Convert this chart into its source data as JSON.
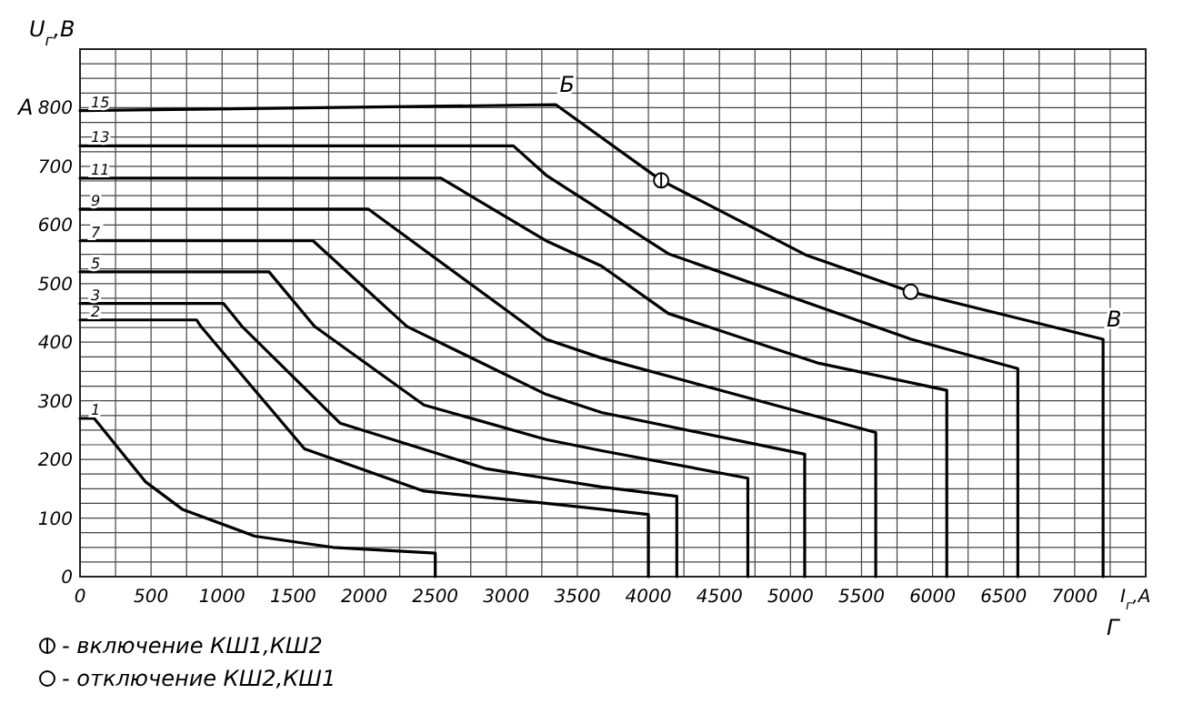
{
  "chart_data": {
    "type": "line",
    "xlabel": "I$_{г}$,А",
    "ylabel": "U$_{г}$,В",
    "xlim": [
      0,
      7500
    ],
    "ylim": [
      0,
      900
    ],
    "xticks": [
      0,
      {
        "value": 250,
        "label": null
      },
      500,
      {
        "value": 750,
        "label": null
      },
      1000,
      {
        "value": 1250,
        "label": null
      },
      1500,
      {
        "value": 1750,
        "label": null
      },
      2000,
      {
        "value": 2250,
        "label": null
      },
      2500,
      {
        "value": 2750,
        "label": null
      },
      3000,
      {
        "value": 3250,
        "label": null
      },
      3500,
      {
        "value": 3750,
        "label": null
      },
      4000,
      {
        "value": 4250,
        "label": null
      },
      4500,
      {
        "value": 4750,
        "label": null
      },
      5000,
      {
        "value": 5250,
        "label": null
      },
      5500,
      {
        "value": 5750,
        "label": null
      },
      6000,
      {
        "value": 6250,
        "label": null
      },
      6500,
      {
        "value": 6750,
        "label": null
      },
      7000,
      {
        "value": 7250,
        "label": null
      },
      {
        "value": 7500,
        "label": null
      }
    ],
    "yticks": [
      0,
      {
        "value": 25,
        "label": null
      },
      {
        "value": 50,
        "label": null
      },
      {
        "value": 75,
        "label": null
      },
      100,
      {
        "value": 125,
        "label": null
      },
      {
        "value": 150,
        "label": null
      },
      {
        "value": 175,
        "label": null
      },
      200,
      {
        "value": 225,
        "label": null
      },
      {
        "value": 250,
        "label": null
      },
      {
        "value": 275,
        "label": null
      },
      300,
      {
        "value": 325,
        "label": null
      },
      {
        "value": 350,
        "label": null
      },
      {
        "value": 375,
        "label": null
      },
      400,
      {
        "value": 425,
        "label": null
      },
      {
        "value": 450,
        "label": null
      },
      {
        "value": 475,
        "label": null
      },
      500,
      {
        "value": 525,
        "label": null
      },
      {
        "value": 550,
        "label": null
      },
      {
        "value": 575,
        "label": null
      },
      600,
      {
        "value": 625,
        "label": null
      },
      {
        "value": 650,
        "label": null
      },
      {
        "value": 675,
        "label": null
      },
      700,
      {
        "value": 725,
        "label": null
      },
      {
        "value": 750,
        "label": null
      },
      {
        "value": 775,
        "label": null
      },
      800,
      {
        "value": 825,
        "label": null
      },
      {
        "value": 850,
        "label": null
      },
      {
        "value": 875,
        "label": null
      },
      {
        "value": 900,
        "label": null
      }
    ],
    "grid": true,
    "legend": "bottom",
    "line_style": "solid",
    "series": [
      {
        "name": "1",
        "color": "#000000",
        "x": [
          0,
          100,
          460,
          720,
          1230,
          1780,
          2500,
          2500
        ],
        "values": [
          270,
          270,
          162,
          115,
          69,
          50,
          40,
          0
        ]
      },
      {
        "name": "2",
        "color": "#000000",
        "x": [
          0,
          820,
          850,
          1580,
          2420,
          3280,
          3670,
          4000,
          4000
        ],
        "values": [
          438,
          438,
          427,
          218,
          146,
          125,
          115,
          106,
          0
        ]
      },
      {
        "name": "3",
        "color": "#000000",
        "x": [
          0,
          1010,
          1140,
          1830,
          2860,
          3280,
          3670,
          4200,
          4200
        ],
        "values": [
          466,
          466,
          427,
          262,
          184,
          168,
          153,
          137,
          0
        ]
      },
      {
        "name": "5",
        "color": "#000000",
        "x": [
          0,
          1330,
          1650,
          2420,
          3280,
          3670,
          4700,
          4700
        ],
        "values": [
          520,
          520,
          427,
          293,
          234,
          215,
          168,
          0
        ]
      },
      {
        "name": "7",
        "color": "#000000",
        "x": [
          0,
          1640,
          2300,
          3280,
          3670,
          5100,
          5100
        ],
        "values": [
          573,
          573,
          427,
          311,
          280,
          209,
          0
        ]
      },
      {
        "name": "9",
        "color": "#000000",
        "x": [
          0,
          2030,
          3280,
          3670,
          5600,
          5600
        ],
        "values": [
          627,
          627,
          405,
          373,
          246,
          0
        ]
      },
      {
        "name": "11",
        "color": "#000000",
        "x": [
          0,
          2540,
          3280,
          3670,
          4140,
          5200,
          6100,
          6100
        ],
        "values": [
          680,
          680,
          573,
          530,
          449,
          364,
          318,
          0
        ]
      },
      {
        "name": "13",
        "color": "#000000",
        "x": [
          0,
          3050,
          3280,
          4140,
          5850,
          6600,
          6600
        ],
        "values": [
          735,
          735,
          685,
          551,
          405,
          355,
          0
        ]
      },
      {
        "name": "15",
        "color": "#000000",
        "x": [
          0,
          3350,
          4090,
          5115,
          5846,
          7200,
          7200
        ],
        "values": [
          795,
          805,
          676,
          548,
          486,
          405,
          0
        ]
      },
      {
        "name": "- включение КШ1,КШ2",
        "type": "scatter",
        "color": "#000000",
        "x": [
          4090
        ],
        "values": [
          676
        ]
      },
      {
        "name": "- отключение КШ2,КШ1",
        "type": "scatter",
        "marker": "circle",
        "color": "#000000",
        "x": [
          5846
        ],
        "values": [
          486
        ]
      }
    ],
    "annotations": [
      {
        "text": "А",
        "x": 0,
        "y": 800
      },
      {
        "text": "Б",
        "x": 3350,
        "y": 805
      },
      {
        "text": "В",
        "x": 7200,
        "y": 405
      },
      {
        "text": "Г",
        "x": 7200,
        "y": 0
      }
    ]
  }
}
